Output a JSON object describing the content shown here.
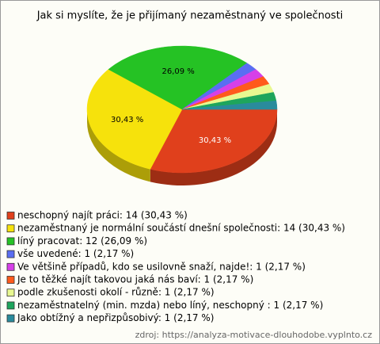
{
  "chart_data": {
    "type": "pie",
    "title": "Jak si myslíte, že je přijímaný nezaměstnaný ve společnosti",
    "categories": [
      "neschopný najít práci: 14 (30,43 %)",
      "nezaměstnaný je normální součástí dnešní společnosti: 14 (30,43 %)",
      "líný pracovat: 12 (26,09 %)",
      "vše uvedené: 1 (2,17 %)",
      "Ve většině případů, kdo se usilovně snaží, najde!: 1 (2,17 %)",
      "Je to těžké najít takovou jaká nás baví: 1 (2,17 %)",
      "podle zkušenosti okolí - různě: 1 (2,17 %)",
      "nezaměstnatelný  (min. mzda) nebo líný, neschopný : 1 (2,17 %)",
      "Jako obtížný a nepřizpůsobivý: 1 (2,17 %)"
    ],
    "values": [
      30.43,
      30.43,
      26.09,
      2.17,
      2.17,
      2.17,
      2.17,
      2.17,
      2.17
    ],
    "value_labels": [
      "30,43 %",
      "30,43 %",
      "26,09 %",
      null,
      null,
      null,
      null,
      null,
      null
    ],
    "colors": [
      "#e0401c",
      "#f6e20c",
      "#25c224",
      "#5a6ef2",
      "#d640e8",
      "#ff5a1c",
      "#e8f890",
      "#1ea55c",
      "#2a8b9c"
    ],
    "source": "zdroj: https://analyza-motivace-dlouhodobe.vyplnto.cz"
  }
}
